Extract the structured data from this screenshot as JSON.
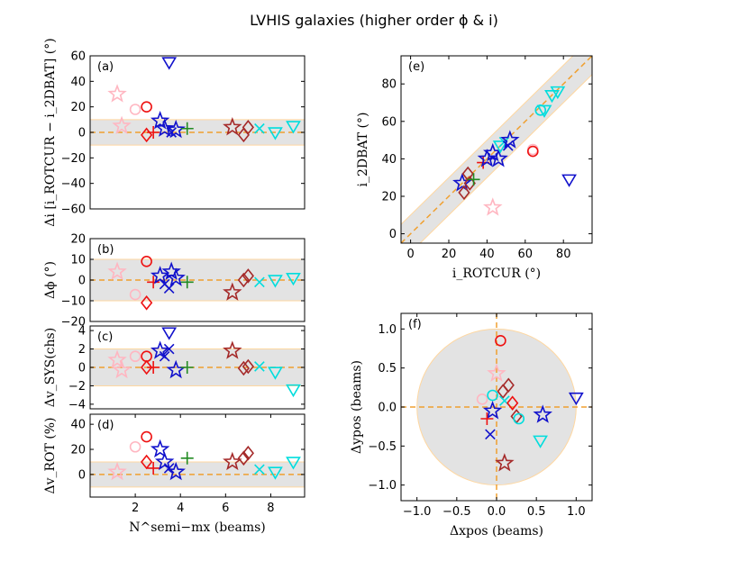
{
  "title": "LVHIS galaxies (higher order ϕ & i)",
  "colors": {
    "band": "#e3e3e3",
    "band_edge": "#ffd7a0",
    "ref_line": "#f0a030"
  },
  "chart_data": [
    {
      "panel": "(a)",
      "type": "scatter",
      "xlim": [
        0,
        9.5
      ],
      "ylim": [
        -60,
        60
      ],
      "yticks": [
        -60,
        -40,
        -20,
        0,
        20,
        40,
        60
      ],
      "xticks": [],
      "xticklabels": [],
      "ylabel": "Δi [i_ROTCUR − i_2DBAT] (°)",
      "band": [
        -10,
        10
      ],
      "hline": 0,
      "points": [
        {
          "x": 1.2,
          "y": 30,
          "m": "star",
          "c": "#ffb6c1"
        },
        {
          "x": 1.4,
          "y": 5,
          "m": "star",
          "c": "#ffb6c1"
        },
        {
          "x": 2.0,
          "y": 18,
          "m": "circle",
          "c": "#ffb6c1"
        },
        {
          "x": 2.5,
          "y": 20,
          "m": "circle",
          "c": "#ee1111"
        },
        {
          "x": 2.5,
          "y": -2,
          "m": "diamond",
          "c": "#ee1111"
        },
        {
          "x": 2.8,
          "y": 0,
          "m": "plus",
          "c": "#ee1111"
        },
        {
          "x": 3.1,
          "y": 9,
          "m": "star",
          "c": "#1111cc"
        },
        {
          "x": 3.3,
          "y": 3,
          "m": "star",
          "c": "#1111cc"
        },
        {
          "x": 3.5,
          "y": 55,
          "m": "tri_down",
          "c": "#1111cc"
        },
        {
          "x": 3.6,
          "y": 0,
          "m": "x",
          "c": "#1111cc"
        },
        {
          "x": 3.8,
          "y": 2,
          "m": "star",
          "c": "#1111cc"
        },
        {
          "x": 4.3,
          "y": 3,
          "m": "plus",
          "c": "#228b22"
        },
        {
          "x": 6.3,
          "y": 4,
          "m": "star",
          "c": "#a52a2a"
        },
        {
          "x": 6.8,
          "y": -2,
          "m": "diamond",
          "c": "#a52a2a"
        },
        {
          "x": 7.0,
          "y": 4,
          "m": "diamond",
          "c": "#a52a2a"
        },
        {
          "x": 7.5,
          "y": 3,
          "m": "x",
          "c": "#00dddd"
        },
        {
          "x": 8.2,
          "y": 0,
          "m": "tri_down",
          "c": "#00dddd"
        },
        {
          "x": 9.0,
          "y": 5,
          "m": "tri_down",
          "c": "#00dddd"
        }
      ]
    },
    {
      "panel": "(b)",
      "type": "scatter",
      "xlim": [
        0,
        9.5
      ],
      "ylim": [
        -20,
        20
      ],
      "yticks": [
        -20,
        -10,
        0,
        10,
        20
      ],
      "xticks": [],
      "xticklabels": [],
      "ylabel": "Δϕ (°)",
      "band": [
        -10,
        10
      ],
      "hline": 0,
      "points": [
        {
          "x": 1.2,
          "y": 4,
          "m": "star",
          "c": "#ffb6c1"
        },
        {
          "x": 2.0,
          "y": -7,
          "m": "circle",
          "c": "#ffb6c1"
        },
        {
          "x": 2.5,
          "y": 9,
          "m": "circle",
          "c": "#ee1111"
        },
        {
          "x": 2.5,
          "y": -11,
          "m": "diamond",
          "c": "#ee1111"
        },
        {
          "x": 2.8,
          "y": -1,
          "m": "plus",
          "c": "#ee1111"
        },
        {
          "x": 3.1,
          "y": 2,
          "m": "star",
          "c": "#1111cc"
        },
        {
          "x": 3.3,
          "y": -2,
          "m": "x",
          "c": "#1111cc"
        },
        {
          "x": 3.5,
          "y": -4,
          "m": "x",
          "c": "#1111cc"
        },
        {
          "x": 3.6,
          "y": 4,
          "m": "star",
          "c": "#1111cc"
        },
        {
          "x": 3.8,
          "y": 1,
          "m": "star",
          "c": "#1111cc"
        },
        {
          "x": 4.3,
          "y": -1,
          "m": "plus",
          "c": "#228b22"
        },
        {
          "x": 6.3,
          "y": -6,
          "m": "star",
          "c": "#a52a2a"
        },
        {
          "x": 6.8,
          "y": 0,
          "m": "diamond",
          "c": "#a52a2a"
        },
        {
          "x": 7.0,
          "y": 2,
          "m": "diamond",
          "c": "#a52a2a"
        },
        {
          "x": 7.5,
          "y": -1,
          "m": "x",
          "c": "#00dddd"
        },
        {
          "x": 8.2,
          "y": 0,
          "m": "tri_down",
          "c": "#00dddd"
        },
        {
          "x": 9.0,
          "y": 1,
          "m": "tri_down",
          "c": "#00dddd"
        }
      ]
    },
    {
      "panel": "(c)",
      "type": "scatter",
      "xlim": [
        0,
        9.5
      ],
      "ylim": [
        -4.5,
        4.5
      ],
      "yticks": [
        -4,
        -2,
        0,
        2,
        4
      ],
      "xticks": [],
      "xticklabels": [],
      "ylabel": "Δv_SYS(chs)",
      "band": [
        -2,
        2
      ],
      "hline": 0,
      "points": [
        {
          "x": 1.2,
          "y": 0.8,
          "m": "star",
          "c": "#ffb6c1"
        },
        {
          "x": 1.4,
          "y": -0.3,
          "m": "star",
          "c": "#ffb6c1"
        },
        {
          "x": 2.0,
          "y": 1.2,
          "m": "circle",
          "c": "#ffb6c1"
        },
        {
          "x": 2.5,
          "y": 1.2,
          "m": "circle",
          "c": "#ee1111"
        },
        {
          "x": 2.5,
          "y": 0,
          "m": "diamond",
          "c": "#ee1111"
        },
        {
          "x": 2.8,
          "y": 0,
          "m": "plus",
          "c": "#ee1111"
        },
        {
          "x": 3.1,
          "y": 1.8,
          "m": "star",
          "c": "#1111cc"
        },
        {
          "x": 3.3,
          "y": 1.2,
          "m": "x",
          "c": "#1111cc"
        },
        {
          "x": 3.5,
          "y": 2,
          "m": "x",
          "c": "#1111cc"
        },
        {
          "x": 3.5,
          "y": 3.8,
          "m": "tri_down",
          "c": "#1111cc"
        },
        {
          "x": 3.8,
          "y": -0.3,
          "m": "star",
          "c": "#1111cc"
        },
        {
          "x": 4.3,
          "y": 0,
          "m": "plus",
          "c": "#228b22"
        },
        {
          "x": 6.3,
          "y": 1.8,
          "m": "star",
          "c": "#a52a2a"
        },
        {
          "x": 6.8,
          "y": -0.1,
          "m": "diamond",
          "c": "#a52a2a"
        },
        {
          "x": 7.0,
          "y": 0.1,
          "m": "diamond",
          "c": "#a52a2a"
        },
        {
          "x": 7.5,
          "y": 0.1,
          "m": "x",
          "c": "#00dddd"
        },
        {
          "x": 8.2,
          "y": -0.5,
          "m": "tri_down",
          "c": "#00dddd"
        },
        {
          "x": 9.0,
          "y": -2.4,
          "m": "tri_down",
          "c": "#00dddd"
        }
      ]
    },
    {
      "panel": "(d)",
      "type": "scatter",
      "xlim": [
        0,
        9.5
      ],
      "ylim": [
        -18,
        48
      ],
      "yticks": [
        0,
        20,
        40
      ],
      "xticks": [
        2,
        4,
        6,
        8
      ],
      "xticklabels": [
        "2",
        "4",
        "6",
        "8"
      ],
      "xlabel": "N^semi−mx (beams)",
      "ylabel": "Δv_ROT (%)",
      "band": [
        -10,
        10
      ],
      "hline": 0,
      "points": [
        {
          "x": 1.2,
          "y": 2,
          "m": "star",
          "c": "#ffb6c1"
        },
        {
          "x": 2.0,
          "y": 22,
          "m": "circle",
          "c": "#ffb6c1"
        },
        {
          "x": 2.5,
          "y": 30,
          "m": "circle",
          "c": "#ee1111"
        },
        {
          "x": 2.5,
          "y": 10,
          "m": "diamond",
          "c": "#ee1111"
        },
        {
          "x": 2.8,
          "y": 5,
          "m": "plus",
          "c": "#ee1111"
        },
        {
          "x": 3.1,
          "y": 20,
          "m": "star",
          "c": "#1111cc"
        },
        {
          "x": 3.3,
          "y": 10,
          "m": "star",
          "c": "#1111cc"
        },
        {
          "x": 3.5,
          "y": 5,
          "m": "x",
          "c": "#1111cc"
        },
        {
          "x": 3.8,
          "y": 2,
          "m": "star",
          "c": "#1111cc"
        },
        {
          "x": 4.3,
          "y": 13,
          "m": "plus",
          "c": "#228b22"
        },
        {
          "x": 6.3,
          "y": 10,
          "m": "star",
          "c": "#a52a2a"
        },
        {
          "x": 6.8,
          "y": 13,
          "m": "diamond",
          "c": "#a52a2a"
        },
        {
          "x": 7.0,
          "y": 17,
          "m": "diamond",
          "c": "#a52a2a"
        },
        {
          "x": 7.5,
          "y": 4,
          "m": "x",
          "c": "#00dddd"
        },
        {
          "x": 8.2,
          "y": 2,
          "m": "tri_down",
          "c": "#00dddd"
        },
        {
          "x": 9.0,
          "y": 10,
          "m": "tri_down",
          "c": "#00dddd"
        }
      ]
    },
    {
      "panel": "(e)",
      "type": "scatter",
      "xlim": [
        -5,
        95
      ],
      "ylim": [
        -5,
        95
      ],
      "xticks": [
        0,
        20,
        40,
        60,
        80
      ],
      "xticklabels": [
        "0",
        "20",
        "40",
        "60",
        "80"
      ],
      "yticks": [
        0,
        20,
        40,
        60,
        80
      ],
      "xlabel": "i_ROTCUR (°)",
      "ylabel": "i_2DBAT (°)",
      "diag_band": 10,
      "diag_line": true,
      "points": [
        {
          "x": 27,
          "y": 27,
          "m": "star",
          "c": "#1111cc"
        },
        {
          "x": 28,
          "y": 22,
          "m": "diamond",
          "c": "#a52a2a"
        },
        {
          "x": 30,
          "y": 32,
          "m": "diamond",
          "c": "#a52a2a"
        },
        {
          "x": 31,
          "y": 27,
          "m": "diamond",
          "c": "#a52a2a"
        },
        {
          "x": 33,
          "y": 29,
          "m": "plus",
          "c": "#228b22"
        },
        {
          "x": 38,
          "y": 38,
          "m": "plus",
          "c": "#ee1111"
        },
        {
          "x": 40,
          "y": 40,
          "m": "star",
          "c": "#1111cc"
        },
        {
          "x": 43,
          "y": 14,
          "m": "star",
          "c": "#ffb6c1"
        },
        {
          "x": 43,
          "y": 43,
          "m": "star",
          "c": "#1111cc"
        },
        {
          "x": 46,
          "y": 40,
          "m": "star",
          "c": "#1111cc"
        },
        {
          "x": 47,
          "y": 47,
          "m": "tri_down",
          "c": "#00dddd"
        },
        {
          "x": 49,
          "y": 49,
          "m": "x",
          "c": "#00dddd"
        },
        {
          "x": 51,
          "y": 47,
          "m": "x",
          "c": "#1111cc"
        },
        {
          "x": 52,
          "y": 50,
          "m": "star",
          "c": "#1111cc"
        },
        {
          "x": 64,
          "y": 45,
          "m": "circle",
          "c": "#ffb6c1"
        },
        {
          "x": 64,
          "y": 44,
          "m": "circle",
          "c": "#ee1111"
        },
        {
          "x": 68,
          "y": 66,
          "m": "circle",
          "c": "#00dddd"
        },
        {
          "x": 70,
          "y": 66,
          "m": "tri_down",
          "c": "#00dddd"
        },
        {
          "x": 74,
          "y": 74,
          "m": "tri_down",
          "c": "#00dddd"
        },
        {
          "x": 77,
          "y": 76,
          "m": "tri_down",
          "c": "#00dddd"
        },
        {
          "x": 83,
          "y": 29,
          "m": "tri_down",
          "c": "#1111cc"
        }
      ]
    },
    {
      "panel": "(f)",
      "type": "scatter",
      "xlim": [
        -1.2,
        1.2
      ],
      "ylim": [
        -1.2,
        1.2
      ],
      "xticks": [
        -1.0,
        -0.5,
        0.0,
        0.5,
        1.0
      ],
      "xticklabels": [
        "−1.0",
        "−0.5",
        "0.0",
        "0.5",
        "1.0"
      ],
      "yticks": [
        -1.0,
        -0.5,
        0.0,
        0.5,
        1.0
      ],
      "yticklabels": [
        "−1.0",
        "−0.5",
        "0.0",
        "0.5",
        "1.0"
      ],
      "xlabel": "Δxpos (beams)",
      "ylabel": "Δypos (beams)",
      "circle_radius": 1.0,
      "crosshair": true,
      "points": [
        {
          "x": 0.05,
          "y": 0.85,
          "m": "circle",
          "c": "#ee1111"
        },
        {
          "x": 0.0,
          "y": 0.43,
          "m": "star",
          "c": "#ffb6c1"
        },
        {
          "x": 0.15,
          "y": 0.28,
          "m": "diamond",
          "c": "#a52a2a"
        },
        {
          "x": 0.08,
          "y": 0.2,
          "m": "diamond",
          "c": "#a52a2a"
        },
        {
          "x": -0.18,
          "y": 0.1,
          "m": "circle",
          "c": "#ffb6c1"
        },
        {
          "x": -0.05,
          "y": 0.15,
          "m": "circle",
          "c": "#00dddd"
        },
        {
          "x": 0.1,
          "y": 0.08,
          "m": "x",
          "c": "#00dddd"
        },
        {
          "x": 0.2,
          "y": 0.05,
          "m": "diamond",
          "c": "#ee1111"
        },
        {
          "x": -0.05,
          "y": -0.05,
          "m": "star",
          "c": "#1111cc"
        },
        {
          "x": -0.12,
          "y": -0.15,
          "m": "plus",
          "c": "#ee1111"
        },
        {
          "x": -0.08,
          "y": -0.35,
          "m": "x",
          "c": "#1111cc"
        },
        {
          "x": 0.25,
          "y": -0.12,
          "m": "diamond",
          "c": "#a52a2a"
        },
        {
          "x": 0.28,
          "y": -0.15,
          "m": "circle",
          "c": "#00dddd"
        },
        {
          "x": 0.58,
          "y": -0.1,
          "m": "star",
          "c": "#1111cc"
        },
        {
          "x": 1.0,
          "y": 0.12,
          "m": "tri_down",
          "c": "#1111cc"
        },
        {
          "x": 0.55,
          "y": -0.43,
          "m": "tri_down",
          "c": "#00dddd"
        },
        {
          "x": 0.1,
          "y": -0.72,
          "m": "star",
          "c": "#a52a2a"
        }
      ]
    }
  ]
}
